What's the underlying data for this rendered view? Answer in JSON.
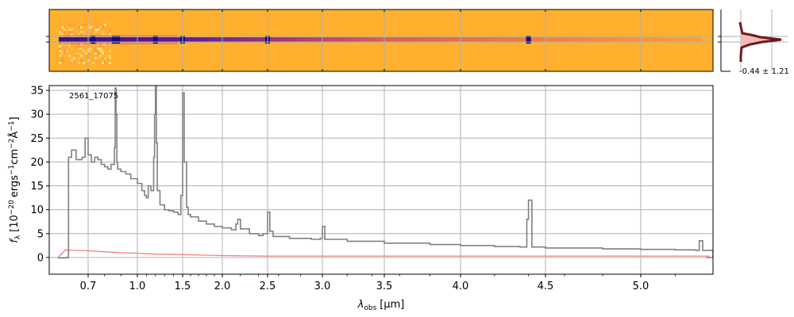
{
  "chart_data": [
    {
      "type": "heatmap",
      "panel": "2d-spectrum",
      "colormap": "plasma",
      "background_color": "#ffb02e",
      "emission_features_um": [
        0.73,
        0.86,
        0.88,
        1.2,
        1.5,
        2.5,
        4.4
      ]
    },
    {
      "type": "line",
      "panel": "1d-spectrum",
      "annotation": "2561_17075",
      "xlabel": {
        "base": "λ",
        "sub": "obs",
        "unit": "[μm]"
      },
      "ylabel": {
        "f": "f",
        "sub": "λ",
        "text": "[10",
        "exp1": "−20",
        "t2": "ergs",
        "exp2": "−1",
        "t3": "cm",
        "exp3": "−2",
        "t4": "Å",
        "exp4": "−1",
        "close": "]"
      },
      "x_axis_scale": "nonlinear",
      "xlim": [
        0.58,
        5.42
      ],
      "ylim": [
        -3.5,
        36
      ],
      "xticks": [
        0.7,
        1.0,
        1.5,
        2.0,
        2.5,
        3.0,
        3.5,
        4.0,
        4.5,
        5.0
      ],
      "xtick_labels": [
        "0.7",
        "1.0",
        "1.5",
        "2.0",
        "2.5",
        "3.0",
        "3.5",
        "4.0",
        "4.5",
        "5.0"
      ],
      "yticks": [
        0,
        5,
        10,
        15,
        20,
        25,
        30,
        35
      ],
      "ytick_labels": [
        "0",
        "5",
        "10",
        "15",
        "20",
        "25",
        "30",
        "35"
      ],
      "grid": true,
      "series": [
        {
          "color": "#808080",
          "style": "steps",
          "x": [
            0.6,
            0.625,
            0.635,
            0.645,
            0.66,
            0.68,
            0.69,
            0.7,
            0.72,
            0.74,
            0.76,
            0.78,
            0.8,
            0.82,
            0.84,
            0.86,
            0.865,
            0.87,
            0.875,
            0.88,
            0.9,
            0.93,
            0.96,
            1.0,
            1.05,
            1.08,
            1.1,
            1.12,
            1.15,
            1.18,
            1.19,
            1.2,
            1.21,
            1.22,
            1.25,
            1.3,
            1.35,
            1.4,
            1.45,
            1.48,
            1.5,
            1.52,
            1.55,
            1.57,
            1.6,
            1.7,
            1.8,
            1.9,
            2.0,
            2.1,
            2.15,
            2.17,
            2.2,
            2.3,
            2.4,
            2.45,
            2.5,
            2.52,
            2.55,
            2.7,
            2.9,
            2.98,
            3.0,
            3.02,
            3.2,
            3.5,
            3.8,
            4.0,
            4.2,
            4.35,
            4.39,
            4.4,
            4.42,
            4.5,
            4.8,
            5.0,
            5.2,
            5.32,
            5.34,
            5.36,
            5.42
          ],
          "y": [
            -0.1,
            0.0,
            21.0,
            22.5,
            20.5,
            21.0,
            25.0,
            21.5,
            20.0,
            21.0,
            20.5,
            19.5,
            19.0,
            18.5,
            19.5,
            23.0,
            35.5,
            30.0,
            20.0,
            18.5,
            18.0,
            17.5,
            16.5,
            15.5,
            14.0,
            13.0,
            12.5,
            15.0,
            14.0,
            21.0,
            30.0,
            36.0,
            24.0,
            14.0,
            11.0,
            10.0,
            9.8,
            9.5,
            9.0,
            13.0,
            34.5,
            20.0,
            10.5,
            9.0,
            8.5,
            7.6,
            7.0,
            6.5,
            6.2,
            5.8,
            7.0,
            8.0,
            6.0,
            5.0,
            4.6,
            5.0,
            9.5,
            5.5,
            4.4,
            4.0,
            3.8,
            4.0,
            6.5,
            3.8,
            3.4,
            3.0,
            2.7,
            2.5,
            2.3,
            2.2,
            8.0,
            12.0,
            2.2,
            2.0,
            1.8,
            1.7,
            1.6,
            1.5,
            3.5,
            1.5,
            0.0
          ]
        },
        {
          "color": "#f08080",
          "style": "line",
          "x": [
            0.6,
            0.625,
            0.65,
            0.7,
            0.8,
            0.9,
            1.0,
            1.2,
            1.5,
            2.0,
            2.5,
            3.0,
            3.5,
            4.0,
            4.5,
            5.0,
            5.4
          ],
          "y": [
            0.0,
            1.6,
            1.5,
            1.4,
            1.2,
            1.0,
            0.9,
            0.7,
            0.6,
            0.4,
            0.3,
            0.3,
            0.3,
            0.3,
            0.3,
            0.3,
            0.3
          ]
        }
      ]
    },
    {
      "type": "line",
      "panel": "spatial-profile",
      "annotation": "-0.44 ± 1.21",
      "color": "#6b1a1a",
      "fill_color": "#f4b8b8"
    }
  ]
}
